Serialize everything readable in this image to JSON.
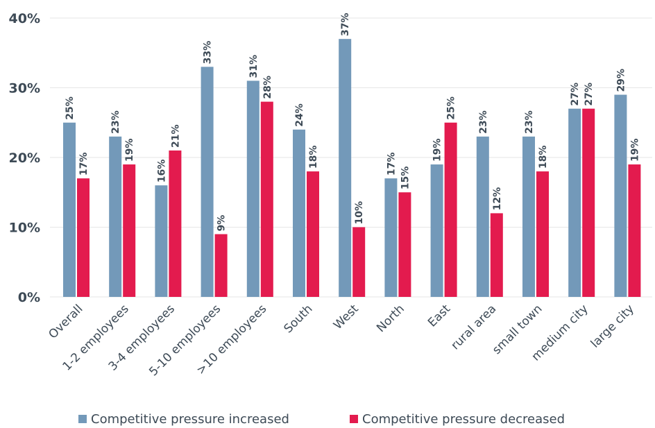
{
  "chart_data": {
    "type": "bar",
    "categories": [
      "Overall",
      "1-2 employees",
      "3-4 employees",
      "5-10 employees",
      ">10 employees",
      "South",
      "West",
      "North",
      "East",
      "rural area",
      "small town",
      "medium city",
      "large city"
    ],
    "series": [
      {
        "name": "Competitive pressure increased",
        "color": "#7399b9",
        "values": [
          25,
          23,
          16,
          33,
          31,
          24,
          37,
          17,
          19,
          23,
          23,
          27,
          29
        ]
      },
      {
        "name": "Competitive pressure decreased",
        "color": "#e31b4e",
        "values": [
          17,
          19,
          21,
          9,
          28,
          18,
          10,
          15,
          25,
          12,
          18,
          27,
          19
        ]
      }
    ],
    "ylim": [
      0,
      40
    ],
    "yticks": [
      0,
      10,
      20,
      30,
      40
    ],
    "ytick_labels": [
      "0%",
      "10%",
      "20%",
      "30%",
      "40%"
    ],
    "value_suffix": "%",
    "grid": true,
    "legend": "bottom"
  }
}
